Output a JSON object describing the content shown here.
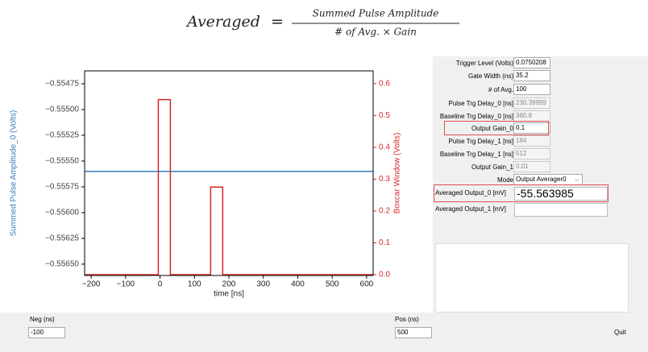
{
  "formula": {
    "lhs": "Averaged",
    "equals": "=",
    "numerator": "Summed Pulse Amplitude",
    "denominator": "# of Avg. × Gain"
  },
  "chart_data": {
    "type": "line",
    "xlabel": "time [ns]",
    "ylabel": "Summed Pulse Amplitude_0 (Volts)",
    "y2label": "Boxcar Window (Volts)",
    "xlim": [
      -219,
      619
    ],
    "xticks": [
      {
        "value": -200,
        "label": "−200"
      },
      {
        "value": -100,
        "label": "−100"
      },
      0,
      100,
      200,
      300,
      400,
      500,
      600
    ],
    "ylim": [
      -0.55661,
      -0.554625
    ],
    "yticks": [
      {
        "value": -0.55475,
        "label": "−0.55475"
      },
      {
        "value": -0.555,
        "label": "−0.55500"
      },
      {
        "value": -0.55525,
        "label": "−0.55525"
      },
      {
        "value": -0.5555,
        "label": "−0.55550"
      },
      {
        "value": -0.55575,
        "label": "−0.55575"
      },
      {
        "value": -0.556,
        "label": "−0.55600"
      },
      {
        "value": -0.55625,
        "label": "−0.55625"
      },
      {
        "value": -0.5565,
        "label": "−0.55650"
      }
    ],
    "y2lim": [
      -0.0025,
      0.64
    ],
    "y2ticks": [
      {
        "value": 0,
        "label": "0.0"
      },
      0.1,
      0.2,
      0.3,
      0.4,
      0.5,
      0.6
    ],
    "ycolor": "#3a7ebf",
    "y2color": "#d62728",
    "series": [
      {
        "color": "#3a7ebf",
        "axis": "y",
        "x": [
          -219,
          619
        ],
        "values": [
          -0.5556,
          -0.5556
        ]
      },
      {
        "color": "#d62728",
        "axis": "y2",
        "x": [
          -219,
          -5,
          -5,
          30,
          30,
          147,
          147,
          182,
          182,
          619
        ],
        "values": [
          0,
          0,
          0.55,
          0.55,
          0,
          0,
          0.275,
          0.275,
          0,
          0
        ]
      }
    ]
  },
  "settings": {
    "fields": [
      {
        "label": "Trigger Level (Volts)",
        "value": "0.0750208",
        "enabled": true
      },
      {
        "label": "Gate Width (ns)",
        "value": "35.2",
        "enabled": true
      },
      {
        "label": "# of Avg.",
        "value": "100",
        "enabled": true
      },
      {
        "label": "Pulse Trg Delay_0 [ns]",
        "value": "230.39999",
        "enabled": false
      },
      {
        "label": "Baseline Trg Delay_0 [ns]",
        "value": "380.8",
        "enabled": false
      },
      {
        "label": "Output Gain_0",
        "value": "0.1",
        "enabled": true,
        "highlight": true
      },
      {
        "label": "Pulse Trg Delay_1 [ns]",
        "value": "184",
        "enabled": false
      },
      {
        "label": "Baseline Trg Delay_1 [ns]",
        "value": "512",
        "enabled": false
      },
      {
        "label": "Output Gain_1",
        "value": "0.01",
        "enabled": false
      }
    ],
    "mode": {
      "label": "Mode",
      "value": "Output Averager0"
    },
    "outputs": [
      {
        "label": "Averaged Output_0 [mV]",
        "value": "-55.563985",
        "highlight": true
      },
      {
        "label": "Averaged Output_1 [mV]"
      }
    ]
  },
  "footer": {
    "neg_label": "Neg (ns)",
    "neg_value": "-100",
    "pos_label": "Pos (ns)",
    "pos_value": "500",
    "quit": "Quit"
  }
}
